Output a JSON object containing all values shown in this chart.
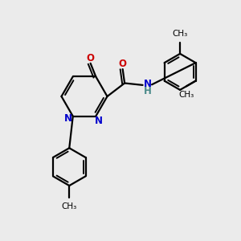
{
  "bg_color": "#ebebeb",
  "bond_color": "#000000",
  "n_color": "#0000cc",
  "o_color": "#cc0000",
  "nh_color": "#4a8a8a",
  "lw": 1.6,
  "lw2": 1.4,
  "fontsize": 8.5,
  "fontsize_small": 7.5,
  "xlim": [
    0,
    10
  ],
  "ylim": [
    0,
    10
  ]
}
